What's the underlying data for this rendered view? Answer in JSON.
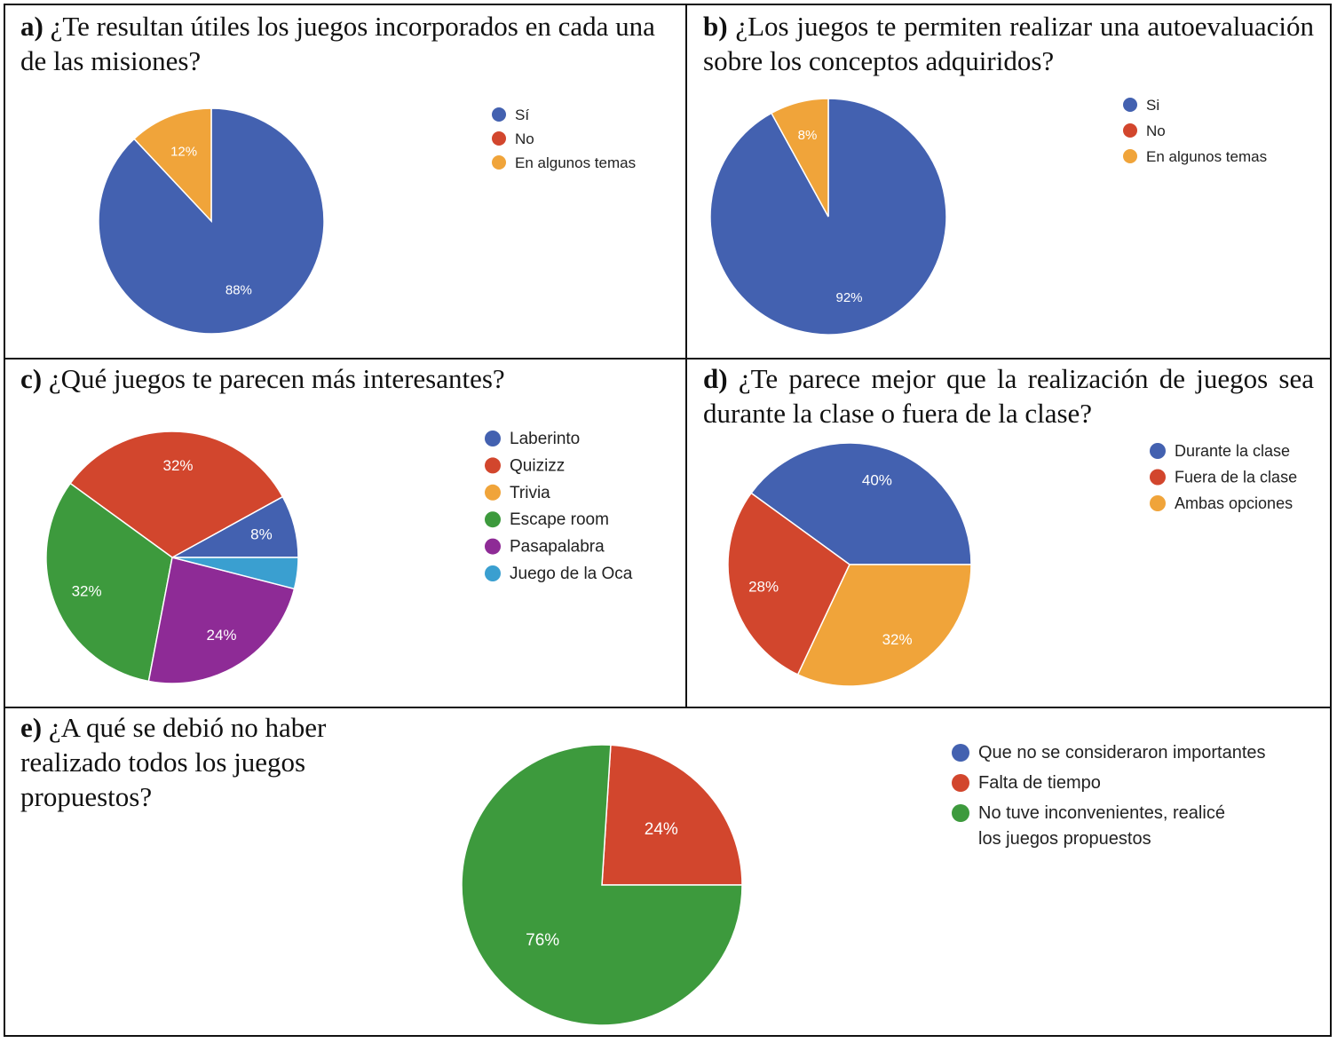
{
  "chart_data": [
    {
      "id": "a",
      "type": "pie",
      "title_label": "a)",
      "title": "¿Te resultan útiles los juegos incorporados en cada una de las misiones?",
      "categories": [
        "Sí",
        "No",
        "En algunos temas"
      ],
      "values": [
        88,
        0,
        12
      ],
      "value_labels": [
        "88%",
        "",
        "12%"
      ],
      "colors": [
        "#4361b0",
        "#d2462d",
        "#f0a43a"
      ],
      "legend_position": "right"
    },
    {
      "id": "b",
      "type": "pie",
      "title_label": "b)",
      "title": "¿Los juegos te permiten realizar una autoevaluación sobre los conceptos adquiridos?",
      "categories": [
        "Si",
        "No",
        "En algunos temas"
      ],
      "values": [
        92,
        0,
        8
      ],
      "value_labels": [
        "92%",
        "",
        "8%"
      ],
      "colors": [
        "#4361b0",
        "#d2462d",
        "#f0a43a"
      ],
      "legend_position": "right"
    },
    {
      "id": "c",
      "type": "pie",
      "title_label": "c)",
      "title": "¿Qué juegos te parecen más interesantes?",
      "categories": [
        "Laberinto",
        "Quizizz",
        "Trivia",
        "Escape room",
        "Pasapalabra",
        "Juego de la Oca"
      ],
      "values": [
        8,
        32,
        0,
        32,
        24,
        4
      ],
      "value_labels": [
        "8%",
        "32%",
        "",
        "32%",
        "24%",
        ""
      ],
      "colors": [
        "#4361b0",
        "#d2462d",
        "#f0a43a",
        "#3d9a3d",
        "#8e2b96",
        "#3a9fd0"
      ],
      "legend_position": "right"
    },
    {
      "id": "d",
      "type": "pie",
      "title_label": "d)",
      "title": "¿Te parece mejor que la realización de juegos sea durante la clase o fuera de la clase?",
      "categories": [
        "Durante la clase",
        "Fuera de la clase",
        "Ambas opciones"
      ],
      "values": [
        40,
        28,
        32
      ],
      "value_labels": [
        "40%",
        "28%",
        "32%"
      ],
      "colors": [
        "#4361b0",
        "#d2462d",
        "#f0a43a"
      ],
      "legend_position": "right"
    },
    {
      "id": "e",
      "type": "pie",
      "title_label": "e)",
      "title": "¿A qué se debió no haber realizado todos los juegos propuestos?",
      "categories": [
        "Que no se consideraron importantes",
        "Falta de tiempo",
        "No tuve inconvenientes, realicé los juegos propuestos"
      ],
      "values": [
        0,
        24,
        76
      ],
      "value_labels": [
        "",
        "24%",
        "76%"
      ],
      "colors": [
        "#4361b0",
        "#d2462d",
        "#3d9a3d"
      ],
      "legend_position": "right"
    }
  ]
}
